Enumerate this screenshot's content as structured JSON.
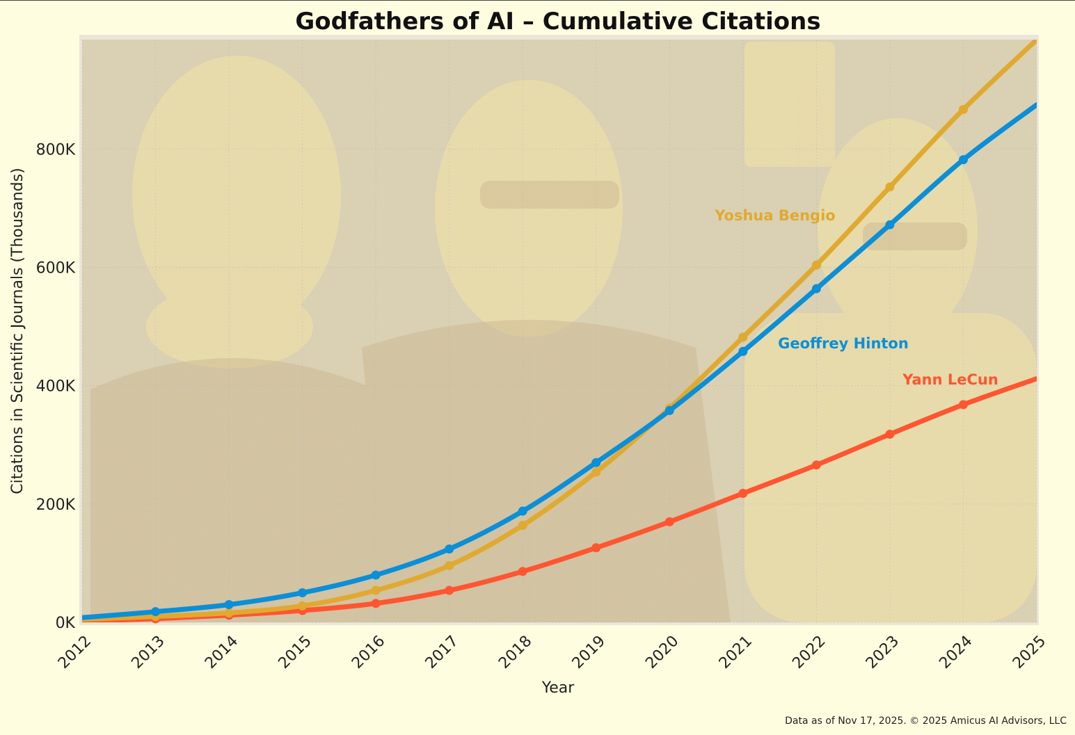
{
  "chart_data": {
    "type": "line",
    "title": "Godfathers of AI – Cumulative Citations",
    "xlabel": "Year",
    "ylabel": "Citations in Scientific Journals (Thousands)",
    "x": [
      2012,
      2013,
      2014,
      2015,
      2016,
      2017,
      2018,
      2019,
      2020,
      2021,
      2022,
      2023,
      2024,
      2025
    ],
    "xlim": [
      2012,
      2025
    ],
    "ylim": [
      0,
      985
    ],
    "yticks": [
      0,
      200,
      400,
      600,
      800
    ],
    "ytick_labels": [
      "0K",
      "200K",
      "400K",
      "600K",
      "800K"
    ],
    "grid": true,
    "series": [
      {
        "name": "Yoshua Bengio",
        "color": "#e0aa30",
        "values": [
          5,
          10,
          16,
          28,
          54,
          96,
          164,
          254,
          362,
          482,
          604,
          736,
          867,
          985
        ]
      },
      {
        "name": "Geoffrey Hinton",
        "color": "#0a8fd8",
        "values": [
          8,
          18,
          30,
          50,
          80,
          124,
          188,
          270,
          358,
          458,
          564,
          672,
          782,
          875
        ]
      },
      {
        "name": "Yann LeCun",
        "color": "#ff5530",
        "values": [
          2,
          6,
          12,
          20,
          32,
          54,
          86,
          126,
          170,
          218,
          266,
          318,
          368,
          412
        ]
      }
    ]
  },
  "footer": "Data as of Nov 17, 2025. © 2025 Amicus AI Advisors, LLC"
}
